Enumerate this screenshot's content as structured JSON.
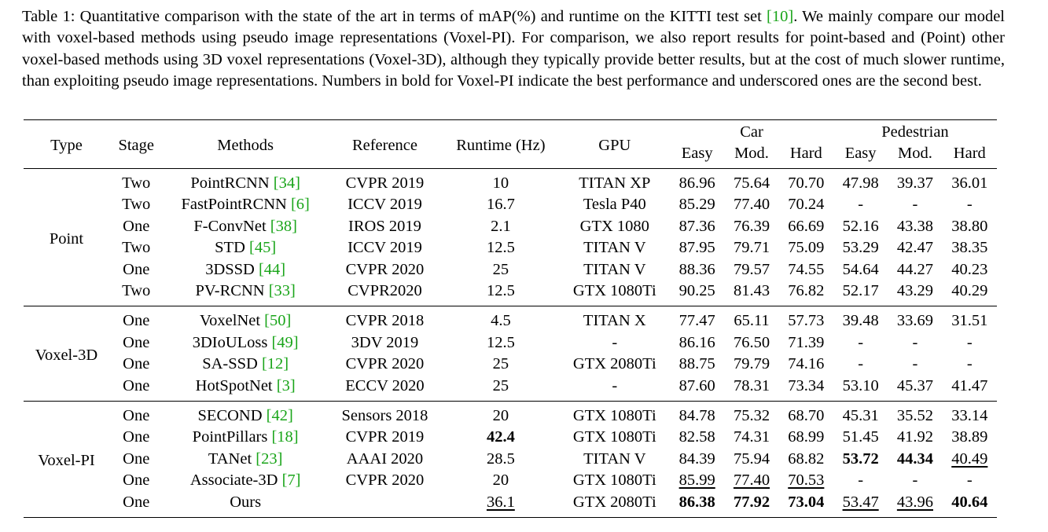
{
  "caption": {
    "before_ref": "Table 1: Quantitative comparison with the state of the art in terms of mAP(%) and runtime on the KITTI test set ",
    "ref": "[10]",
    "after_ref": ". We mainly compare our model with voxel-based methods using pseudo image representations (Voxel-PI). For comparison, we also report results for point-based and (Point) other voxel-based methods using 3D voxel representations (Voxel-3D), although they typically provide better results, but at the cost of much slower runtime, than exploiting pseudo image representations. Numbers in bold for Voxel-PI indicate the best performance and underscored ones are the second best."
  },
  "headers": {
    "type": "Type",
    "stage": "Stage",
    "methods": "Methods",
    "reference": "Reference",
    "runtime": "Runtime (Hz)",
    "gpu": "GPU",
    "car": "Car",
    "pedestrian": "Pedestrian",
    "easy": "Easy",
    "mod": "Mod.",
    "hard": "Hard"
  },
  "groups": [
    {
      "type": "Point",
      "rows": [
        {
          "stage": "Two",
          "method": "PointRCNN",
          "cite": "[34]",
          "reference": "CVPR 2019",
          "runtime": "10",
          "gpu": "TITAN XP",
          "values": [
            "86.96",
            "75.64",
            "70.70",
            "47.98",
            "39.37",
            "36.01"
          ]
        },
        {
          "stage": "Two",
          "method": "FastPointRCNN",
          "cite": "[6]",
          "reference": "ICCV 2019",
          "runtime": "16.7",
          "gpu": "Tesla P40",
          "values": [
            "85.29",
            "77.40",
            "70.24",
            "-",
            "-",
            "-"
          ]
        },
        {
          "stage": "One",
          "method": "F-ConvNet",
          "cite": "[38]",
          "reference": "IROS 2019",
          "runtime": "2.1",
          "gpu": "GTX 1080",
          "values": [
            "87.36",
            "76.39",
            "66.69",
            "52.16",
            "43.38",
            "38.80"
          ]
        },
        {
          "stage": "Two",
          "method": "STD",
          "cite": "[45]",
          "reference": "ICCV 2019",
          "runtime": "12.5",
          "gpu": "TITAN V",
          "values": [
            "87.95",
            "79.71",
            "75.09",
            "53.29",
            "42.47",
            "38.35"
          ]
        },
        {
          "stage": "One",
          "method": "3DSSD",
          "cite": "[44]",
          "reference": "CVPR 2020",
          "runtime": "25",
          "gpu": "TITAN V",
          "values": [
            "88.36",
            "79.57",
            "74.55",
            "54.64",
            "44.27",
            "40.23"
          ]
        },
        {
          "stage": "Two",
          "method": "PV-RCNN",
          "cite": "[33]",
          "reference": "CVPR2020",
          "runtime": "12.5",
          "gpu": "GTX 1080Ti",
          "values": [
            "90.25",
            "81.43",
            "76.82",
            "52.17",
            "43.29",
            "40.29"
          ]
        }
      ]
    },
    {
      "type": "Voxel-3D",
      "rows": [
        {
          "stage": "One",
          "method": "VoxelNet",
          "cite": "[50]",
          "reference": "CVPR 2018",
          "runtime": "4.5",
          "gpu": "TITAN X",
          "values": [
            "77.47",
            "65.11",
            "57.73",
            "39.48",
            "33.69",
            "31.51"
          ]
        },
        {
          "stage": "One",
          "method": "3DIoULoss",
          "cite": "[49]",
          "reference": "3DV 2019",
          "runtime": "12.5",
          "gpu": "-",
          "values": [
            "86.16",
            "76.50",
            "71.39",
            "-",
            "-",
            "-"
          ]
        },
        {
          "stage": "One",
          "method": "SA-SSD",
          "cite": "[12]",
          "reference": "CVPR 2020",
          "runtime": "25",
          "gpu": "GTX 2080Ti",
          "values": [
            "88.75",
            "79.79",
            "74.16",
            "-",
            "-",
            "-"
          ]
        },
        {
          "stage": "One",
          "method": "HotSpotNet",
          "cite": "[3]",
          "reference": "ECCV 2020",
          "runtime": "25",
          "gpu": "-",
          "values": [
            "87.60",
            "78.31",
            "73.34",
            "53.10",
            "45.37",
            "41.47"
          ]
        }
      ]
    },
    {
      "type": "Voxel-PI",
      "rows": [
        {
          "stage": "One",
          "method": "SECOND",
          "cite": "[42]",
          "reference": "Sensors 2018",
          "runtime": "20",
          "gpu": "GTX 1080Ti",
          "values": [
            "84.78",
            "75.32",
            "68.70",
            "45.31",
            "35.52",
            "33.14"
          ],
          "bold": [],
          "underline": []
        },
        {
          "stage": "One",
          "method": "PointPillars",
          "cite": "[18]",
          "reference": "CVPR 2019",
          "runtime": "42.4",
          "gpu": "GTX 1080Ti",
          "values": [
            "82.58",
            "74.31",
            "68.99",
            "51.45",
            "41.92",
            "38.89"
          ],
          "bold": [
            "runtime"
          ],
          "underline": []
        },
        {
          "stage": "One",
          "method": "TANet",
          "cite": "[23]",
          "reference": "AAAI 2020",
          "runtime": "28.5",
          "gpu": "TITAN V",
          "values": [
            "84.39",
            "75.94",
            "68.82",
            "53.72",
            "44.34",
            "40.49"
          ],
          "bold": [
            3,
            4
          ],
          "underline": [
            5
          ]
        },
        {
          "stage": "One",
          "method": "Associate-3D",
          "cite": "[7]",
          "reference": "CVPR 2020",
          "runtime": "20",
          "gpu": "GTX 1080Ti",
          "values": [
            "85.99",
            "77.40",
            "70.53",
            "-",
            "-",
            "-"
          ],
          "bold": [],
          "underline": [
            0,
            1,
            2
          ]
        },
        {
          "stage": "One",
          "method": "Ours",
          "cite": "",
          "reference": "",
          "runtime": "36.1",
          "gpu": "GTX 2080Ti",
          "values": [
            "86.38",
            "77.92",
            "73.04",
            "53.47",
            "43.96",
            "40.64"
          ],
          "bold": [
            0,
            1,
            2,
            5
          ],
          "underline": [
            "runtime",
            3,
            4
          ]
        }
      ]
    }
  ]
}
